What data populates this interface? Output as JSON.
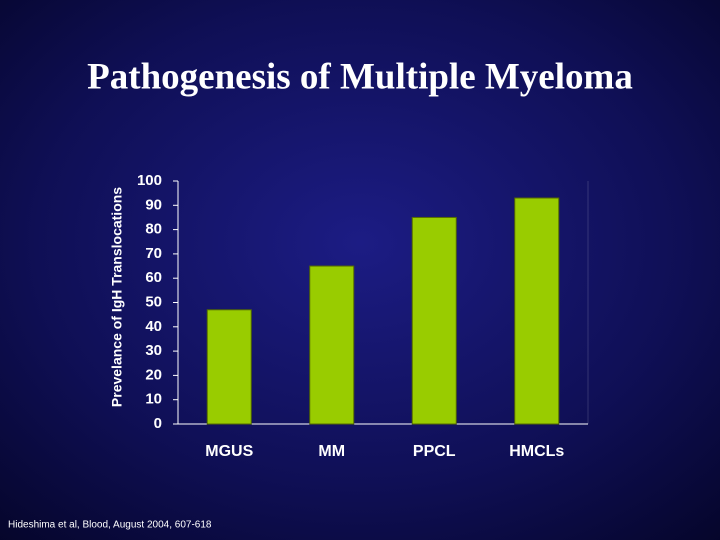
{
  "chart_data": {
    "type": "bar",
    "title": "Pathogenesis of Multiple Myeloma",
    "y_label": "Prevelance of IgH Translocations",
    "categories": [
      "MGUS",
      "MM",
      "PPCL",
      "HMCLs"
    ],
    "values": [
      47,
      65,
      85,
      93
    ],
    "color": "#99cc00",
    "ylim": [
      0,
      100
    ],
    "yticks": [
      0,
      10,
      20,
      30,
      40,
      50,
      60,
      70,
      80,
      90,
      100
    ],
    "grid": false,
    "source": "Hideshima et al, Blood, August 2004, 607-618"
  }
}
